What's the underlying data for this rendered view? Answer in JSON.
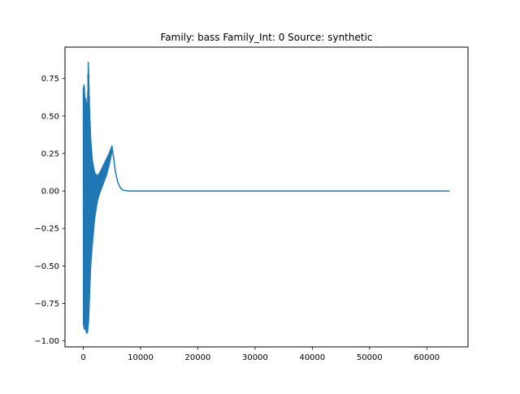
{
  "chart_data": {
    "type": "line",
    "title": "Family: bass Family_Int: 0 Source: synthetic",
    "xlabel": "",
    "ylabel": "",
    "xlim": [
      -3200,
      67200
    ],
    "ylim": [
      -1.04,
      0.96
    ],
    "grid": false,
    "legend": "none",
    "line_color": "#1f77b4",
    "x_ticks": [
      {
        "value": 0,
        "label": "0"
      },
      {
        "value": 10000,
        "label": "10000"
      },
      {
        "value": 20000,
        "label": "20000"
      },
      {
        "value": 30000,
        "label": "30000"
      },
      {
        "value": 40000,
        "label": "40000"
      },
      {
        "value": 50000,
        "label": "50000"
      },
      {
        "value": 60000,
        "label": "60000"
      }
    ],
    "y_ticks": [
      {
        "value": 0.75,
        "label": "0.75"
      },
      {
        "value": 0.5,
        "label": "0.50"
      },
      {
        "value": 0.25,
        "label": "0.25"
      },
      {
        "value": 0.0,
        "label": "0.00"
      },
      {
        "value": -0.25,
        "label": "−0.25"
      },
      {
        "value": -0.5,
        "label": "−0.50"
      },
      {
        "value": -0.75,
        "label": "−0.75"
      },
      {
        "value": -1.0,
        "label": "−1.00"
      }
    ],
    "series": [
      {
        "envelope": [
          {
            "x": 0,
            "min": -0.88,
            "max": 0.69
          },
          {
            "x": 150,
            "min": -0.92,
            "max": 0.71
          },
          {
            "x": 300,
            "min": -0.92,
            "max": 0.6
          },
          {
            "x": 450,
            "min": -0.93,
            "max": 0.62
          },
          {
            "x": 600,
            "min": -0.95,
            "max": 0.55
          },
          {
            "x": 750,
            "min": -0.94,
            "max": 0.6
          },
          {
            "x": 850,
            "min": -0.9,
            "max": 0.87
          },
          {
            "x": 950,
            "min": -0.86,
            "max": 0.78
          },
          {
            "x": 1100,
            "min": -0.7,
            "max": 0.55
          },
          {
            "x": 1300,
            "min": -0.5,
            "max": 0.35
          },
          {
            "x": 1600,
            "min": -0.35,
            "max": 0.2
          },
          {
            "x": 2000,
            "min": -0.18,
            "max": 0.12
          },
          {
            "x": 2500,
            "min": -0.06,
            "max": 0.1
          },
          {
            "x": 3000,
            "min": 0.0,
            "max": 0.13
          },
          {
            "x": 3500,
            "min": 0.05,
            "max": 0.17
          },
          {
            "x": 4000,
            "min": 0.1,
            "max": 0.21
          },
          {
            "x": 4500,
            "min": 0.17,
            "max": 0.25
          },
          {
            "x": 5000,
            "min": 0.26,
            "max": 0.3
          }
        ],
        "decay": [
          {
            "x": 5000,
            "y": 0.3
          },
          {
            "x": 5300,
            "y": 0.22
          },
          {
            "x": 5600,
            "y": 0.13
          },
          {
            "x": 6000,
            "y": 0.06
          },
          {
            "x": 6500,
            "y": 0.02
          },
          {
            "x": 7000,
            "y": 0.005
          },
          {
            "x": 8000,
            "y": 0.0
          },
          {
            "x": 64000,
            "y": 0.0
          }
        ]
      }
    ]
  }
}
